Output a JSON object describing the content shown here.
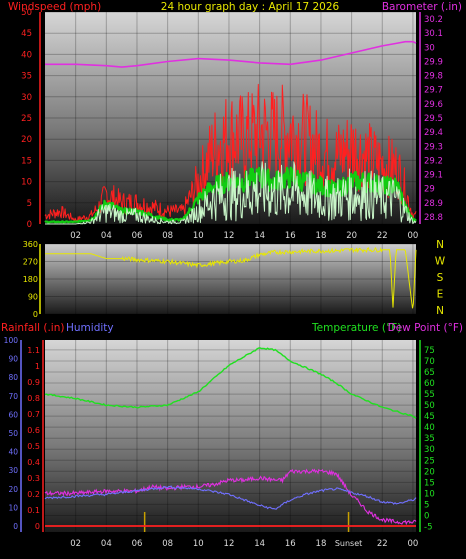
{
  "colors": {
    "windspeed": "#ff2020",
    "gust_green": "#11cc11",
    "avg_light": "#c8f5c8",
    "barometer": "#e030e0",
    "direction": "#e8e800",
    "rainfall": "#ff2020",
    "humidity": "#7070ff",
    "temperature": "#20e020",
    "dewpoint": "#e030e0",
    "title": "#e8e800",
    "compass": "#e8e800",
    "sunrise": "#c8a000"
  },
  "chart_data": [
    {
      "type": "line",
      "panel": "wind-barometer",
      "title": "24 hour graph day : April 17 2026",
      "ylabel_left": "Windspeed (mph)",
      "ylabel_right": "Barometer (.in)",
      "x_ticks": [
        "02",
        "04",
        "06",
        "08",
        "10",
        "12",
        "14",
        "16",
        "18",
        "20",
        "22",
        "00"
      ],
      "x_range": [
        0,
        24.2
      ],
      "y_left_range": [
        0,
        50
      ],
      "y_left_ticks": [
        "0",
        "5",
        "10",
        "15",
        "20",
        "25",
        "30",
        "35",
        "40",
        "45",
        "50"
      ],
      "y_right_range": [
        28.75,
        30.25
      ],
      "y_right_ticks": [
        "28.8",
        "28.9",
        "29",
        "29.1",
        "29.2",
        "29.3",
        "29.4",
        "29.5",
        "29.6",
        "29.7",
        "29.8",
        "29.9",
        "30",
        "30.1",
        "30.2"
      ],
      "series": [
        {
          "key": "barometer",
          "axis": "right",
          "x": [
            0,
            2,
            4,
            5,
            6,
            8,
            10,
            12,
            14,
            16,
            18,
            20,
            22,
            23,
            23.5,
            24,
            24.2
          ],
          "y": [
            29.88,
            29.88,
            29.87,
            29.86,
            29.87,
            29.9,
            29.92,
            29.91,
            29.89,
            29.88,
            29.91,
            29.96,
            30.01,
            30.03,
            30.04,
            30.04,
            30.03
          ]
        },
        {
          "key": "windspeed",
          "axis": "left",
          "x": [
            0,
            1,
            2,
            3,
            3.5,
            4,
            5,
            6,
            7,
            8,
            9,
            10,
            11,
            12,
            13,
            14,
            15,
            16,
            17,
            18,
            19,
            20,
            21,
            22,
            23,
            23.5,
            24,
            24.2
          ],
          "y": [
            2,
            3,
            1,
            2,
            4,
            7,
            5,
            5,
            4,
            3,
            3,
            10,
            18,
            21,
            20,
            22,
            21,
            22,
            20,
            17,
            16,
            18,
            16,
            14,
            13,
            8,
            2,
            2
          ]
        },
        {
          "key": "gust_green",
          "axis": "left",
          "x": [
            0,
            1,
            2,
            3,
            3.5,
            4,
            5,
            6,
            7,
            8,
            9,
            10,
            11,
            12,
            13,
            14,
            15,
            16,
            17,
            18,
            19,
            20,
            21,
            22,
            23,
            23.5,
            24,
            24.2
          ],
          "y": [
            0.5,
            0.5,
            0.5,
            1,
            3,
            5,
            3,
            3,
            2,
            1,
            1,
            6,
            9,
            10,
            10,
            11,
            10,
            11,
            10,
            9,
            8,
            10,
            10,
            9,
            9,
            4,
            1,
            1
          ]
        },
        {
          "key": "avg_light",
          "axis": "left",
          "x": [
            0,
            1,
            2,
            3,
            3.5,
            4,
            5,
            6,
            7,
            8,
            9,
            10,
            11,
            12,
            13,
            14,
            15,
            16,
            17,
            18,
            19,
            20,
            21,
            22,
            23,
            23.5,
            24,
            24.2
          ],
          "y": [
            0,
            0,
            0,
            0.5,
            2,
            3,
            2,
            2,
            1,
            0.5,
            0.5,
            3,
            6,
            7,
            7,
            8,
            7,
            8,
            7,
            6,
            6,
            7,
            7,
            6,
            6,
            3,
            0.5,
            0.5
          ]
        }
      ]
    },
    {
      "type": "line",
      "panel": "wind-direction",
      "y_range": [
        0,
        360
      ],
      "y_ticks": [
        "0",
        "90",
        "180",
        "270",
        "360"
      ],
      "compass_labels": [
        "N",
        "W",
        "S",
        "E",
        "N"
      ],
      "series": [
        {
          "key": "direction",
          "x": [
            0,
            1,
            2,
            3,
            4,
            5,
            6,
            7,
            8,
            9,
            10,
            11,
            12,
            13,
            14,
            15,
            16,
            17,
            18,
            19,
            20,
            21,
            22,
            22.5,
            22.7,
            22.9,
            23.5,
            24,
            24.2
          ],
          "y": [
            310,
            310,
            310,
            310,
            285,
            285,
            280,
            275,
            270,
            260,
            250,
            260,
            270,
            275,
            305,
            318,
            320,
            322,
            325,
            325,
            330,
            330,
            330,
            330,
            30,
            330,
            330,
            10,
            330
          ]
        }
      ]
    },
    {
      "type": "line",
      "panel": "rain-humidity-temperature",
      "ylabel_left": "Rainfall (.in)",
      "ylabel_left2": "Humidity",
      "ylabel_right": "Temperature (°F)",
      "ylabel_right2": "Dew Point (°F)",
      "x_ticks": [
        "02",
        "04",
        "06",
        "08",
        "10",
        "12",
        "14",
        "16",
        "18",
        "20",
        "22",
        "00"
      ],
      "x_range": [
        0,
        24.2
      ],
      "rain_range": [
        0,
        1.2
      ],
      "rain_ticks": [
        "0",
        "0.1",
        "0.2",
        "0.3",
        "0.4",
        "0.5",
        "0.6",
        "0.7",
        "0.8",
        "0.9",
        "1",
        "1.1"
      ],
      "humidity_ticks": [
        "0",
        "10",
        "20",
        "30",
        "40",
        "50",
        "60",
        "70",
        "80",
        "90",
        "100"
      ],
      "temp_range": [
        -7.5,
        79.5
      ],
      "temp_ticks": [
        "-5",
        "0",
        "5",
        "10",
        "15",
        "20",
        "25",
        "30",
        "35",
        "40",
        "45",
        "50",
        "55",
        "60",
        "65",
        "70",
        "75"
      ],
      "sun_markers": [
        {
          "x": 6.5,
          "label": ""
        },
        {
          "x": 19.8,
          "label": "Sunset"
        }
      ],
      "series": [
        {
          "key": "temperature",
          "axis": "right",
          "x": [
            0,
            2,
            4,
            6,
            8,
            10,
            11,
            12,
            13,
            14,
            15,
            16,
            17,
            18,
            19,
            20,
            21,
            22,
            23,
            24,
            24.2
          ],
          "y": [
            55,
            53,
            50,
            49,
            50,
            56,
            62,
            68,
            72,
            76,
            75,
            70,
            67,
            64,
            60,
            55,
            52,
            49,
            47,
            45,
            44
          ]
        },
        {
          "key": "dewpoint",
          "axis": "right",
          "x": [
            0,
            2,
            4,
            6,
            7,
            8,
            9,
            10,
            11,
            12,
            13,
            14,
            15,
            15.5,
            16,
            17,
            18,
            19,
            20,
            20.5,
            21,
            22,
            23,
            24,
            24.2
          ],
          "y": [
            10,
            10,
            11,
            11,
            13,
            12,
            13,
            13,
            14,
            16,
            16,
            17,
            16,
            16,
            20,
            20,
            20,
            19,
            9,
            6,
            2,
            -2,
            -3,
            -3,
            -3
          ]
        },
        {
          "key": "humidity",
          "axis": "left",
          "x": [
            0,
            2,
            4,
            6,
            8,
            10,
            12,
            13,
            14,
            15,
            16,
            17,
            18,
            19,
            20,
            21,
            22,
            23,
            24,
            24.2
          ],
          "y": [
            15,
            16,
            17,
            19,
            21,
            20,
            17,
            14,
            11,
            9,
            14,
            17,
            19,
            20,
            18,
            16,
            13,
            12,
            14,
            15
          ]
        },
        {
          "key": "rainfall",
          "axis": "left",
          "x": [
            0,
            24.2
          ],
          "y": [
            0,
            0
          ]
        }
      ]
    }
  ]
}
